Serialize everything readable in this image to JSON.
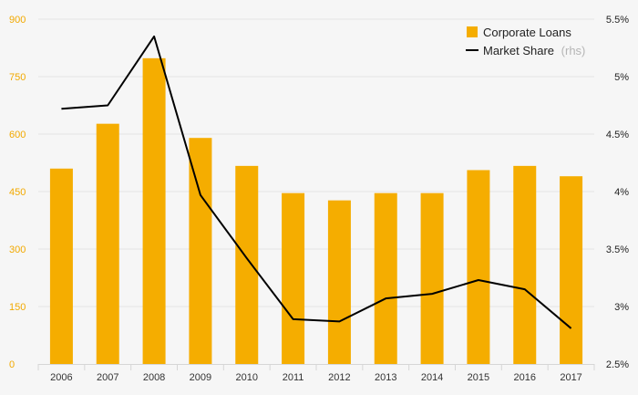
{
  "chart_data": {
    "type": "bar",
    "categories": [
      "2006",
      "2007",
      "2008",
      "2009",
      "2010",
      "2011",
      "2012",
      "2013",
      "2014",
      "2015",
      "2016",
      "2017"
    ],
    "series": [
      {
        "name": "Corporate Loans",
        "type": "bar",
        "axis": "left",
        "color": "#f5ad00",
        "values": [
          510,
          627,
          798,
          590,
          517,
          446,
          427,
          446,
          446,
          506,
          517,
          490
        ]
      },
      {
        "name": "Market Share",
        "name_suffix": "(rhs)",
        "type": "line",
        "axis": "right",
        "color": "#000000",
        "values": [
          4.72,
          4.75,
          5.35,
          3.97,
          3.42,
          2.89,
          2.87,
          3.07,
          3.11,
          3.23,
          3.15,
          2.81
        ]
      }
    ],
    "left_axis": {
      "ylim": [
        0,
        900
      ],
      "ticks": [
        0,
        150,
        300,
        450,
        600,
        750,
        900
      ],
      "tick_labels": [
        "0",
        "150",
        "300",
        "450",
        "600",
        "750",
        "900"
      ],
      "color": "#f2a900"
    },
    "right_axis": {
      "ylim": [
        2.5,
        5.5
      ],
      "ticks": [
        2.5,
        3,
        3.5,
        4,
        4.5,
        5,
        5.5
      ],
      "tick_labels": [
        "2.5%",
        "3%",
        "3.5%",
        "4%",
        "4.5%",
        "5%",
        "5.5%"
      ],
      "color": "#222222"
    },
    "grid": true,
    "legend": {
      "position": "top-right",
      "entries": [
        "Corporate Loans",
        "Market Share"
      ]
    }
  }
}
